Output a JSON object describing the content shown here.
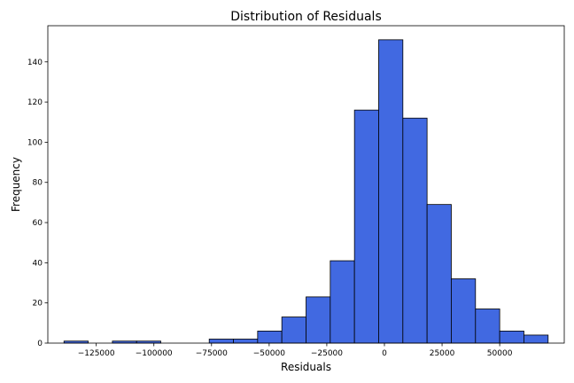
{
  "chart_data": {
    "type": "bar",
    "title": "Distribution of Residuals",
    "xlabel": "Residuals",
    "ylabel": "Frequency",
    "bins": [
      {
        "start": -139000,
        "end": -128500,
        "count": 1
      },
      {
        "start": -128500,
        "end": -118000,
        "count": 0
      },
      {
        "start": -118000,
        "end": -107500,
        "count": 1
      },
      {
        "start": -107500,
        "end": -97000,
        "count": 1
      },
      {
        "start": -97000,
        "end": -86500,
        "count": 0
      },
      {
        "start": -86500,
        "end": -76000,
        "count": 0
      },
      {
        "start": -76000,
        "end": -65500,
        "count": 2
      },
      {
        "start": -65500,
        "end": -55000,
        "count": 2
      },
      {
        "start": -55000,
        "end": -44500,
        "count": 6
      },
      {
        "start": -44500,
        "end": -34000,
        "count": 13
      },
      {
        "start": -34000,
        "end": -23500,
        "count": 23
      },
      {
        "start": -23500,
        "end": -13000,
        "count": 41
      },
      {
        "start": -13000,
        "end": -2500,
        "count": 116
      },
      {
        "start": -2500,
        "end": 8000,
        "count": 151
      },
      {
        "start": 8000,
        "end": 18500,
        "count": 112
      },
      {
        "start": 18500,
        "end": 29000,
        "count": 69
      },
      {
        "start": 29000,
        "end": 39500,
        "count": 32
      },
      {
        "start": 39500,
        "end": 50000,
        "count": 17
      },
      {
        "start": 50000,
        "end": 60500,
        "count": 6
      },
      {
        "start": 60500,
        "end": 71000,
        "count": 4
      }
    ],
    "x_ticks": [
      {
        "value": -125000,
        "label": "−125000"
      },
      {
        "value": -100000,
        "label": "−100000"
      },
      {
        "value": -75000,
        "label": "−75000"
      },
      {
        "value": -50000,
        "label": "−50000"
      },
      {
        "value": -25000,
        "label": "−25000"
      },
      {
        "value": 0,
        "label": "0"
      },
      {
        "value": 25000,
        "label": "25000"
      },
      {
        "value": 50000,
        "label": "50000"
      }
    ],
    "y_ticks": [
      {
        "value": 0,
        "label": "0"
      },
      {
        "value": 20,
        "label": "20"
      },
      {
        "value": 40,
        "label": "40"
      },
      {
        "value": 60,
        "label": "60"
      },
      {
        "value": 80,
        "label": "80"
      },
      {
        "value": 100,
        "label": "100"
      },
      {
        "value": 120,
        "label": "120"
      },
      {
        "value": 140,
        "label": "140"
      }
    ],
    "xlim": [
      -146000,
      78000
    ],
    "ylim": [
      0,
      158
    ],
    "grid": false,
    "colors": {
      "bar_fill": "#4169e1",
      "bar_edge": "#000000",
      "axis": "#000000"
    }
  }
}
